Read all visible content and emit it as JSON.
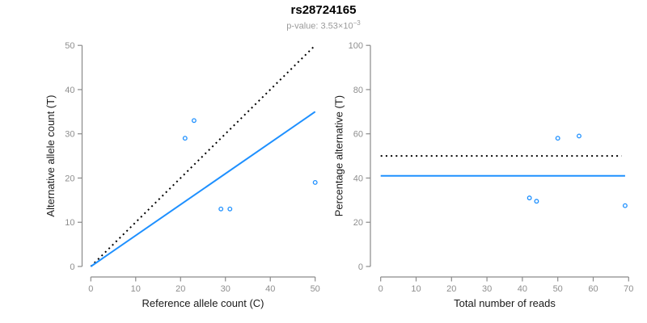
{
  "header": {
    "title": "rs28724165",
    "subtitle_prefix": "p-value: ",
    "subtitle_mantissa": "3.53×10",
    "subtitle_exponent": "−3"
  },
  "colors": {
    "accent_blue": "#1E90FF",
    "line_black": "#000000",
    "axis_gray": "#8A8A8A",
    "tick_label_gray": "#8E8E8E",
    "axis_title_color": "#1A1A1A",
    "background": "#FFFFFF"
  },
  "chart_data": [
    {
      "type": "scatter",
      "panel": "left",
      "xlabel": "Reference allele count (C)",
      "ylabel": "Alternative allele count (T)",
      "xlim": [
        0,
        50
      ],
      "ylim": [
        0,
        50
      ],
      "xticks": [
        0,
        10,
        20,
        30,
        40,
        50
      ],
      "yticks": [
        0,
        10,
        20,
        30,
        40,
        50
      ],
      "grid": false,
      "points": [
        [
          21,
          29
        ],
        [
          23,
          33
        ],
        [
          29,
          13
        ],
        [
          31,
          13
        ],
        [
          50,
          19
        ]
      ],
      "lines": [
        {
          "name": "identity-line",
          "style": "dotted",
          "color": "#000000",
          "width": 2,
          "from": [
            0,
            0
          ],
          "to": [
            50,
            50
          ]
        },
        {
          "name": "fit-line",
          "style": "solid",
          "color": "#1E90FF",
          "width": 2,
          "from": [
            0,
            0
          ],
          "to": [
            50,
            35
          ]
        }
      ]
    },
    {
      "type": "scatter",
      "panel": "right",
      "xlabel": "Total number of reads",
      "ylabel": "Percentage alternative (T)",
      "xlim": [
        0,
        70
      ],
      "ylim": [
        0,
        100
      ],
      "xticks": [
        0,
        10,
        20,
        30,
        40,
        50,
        60,
        70
      ],
      "yticks": [
        0,
        20,
        40,
        60,
        80,
        100
      ],
      "grid": false,
      "points": [
        [
          50,
          58
        ],
        [
          56,
          59
        ],
        [
          42,
          31
        ],
        [
          44,
          29.5
        ],
        [
          69,
          27.5
        ]
      ],
      "lines": [
        {
          "name": "expected-50pct-line",
          "style": "dotted",
          "color": "#000000",
          "width": 2,
          "from": [
            0,
            50
          ],
          "to": [
            68,
            50
          ]
        },
        {
          "name": "mean-percentage-line",
          "style": "solid",
          "color": "#1E90FF",
          "width": 2,
          "from": [
            0,
            41
          ],
          "to": [
            69,
            41
          ]
        }
      ]
    }
  ]
}
